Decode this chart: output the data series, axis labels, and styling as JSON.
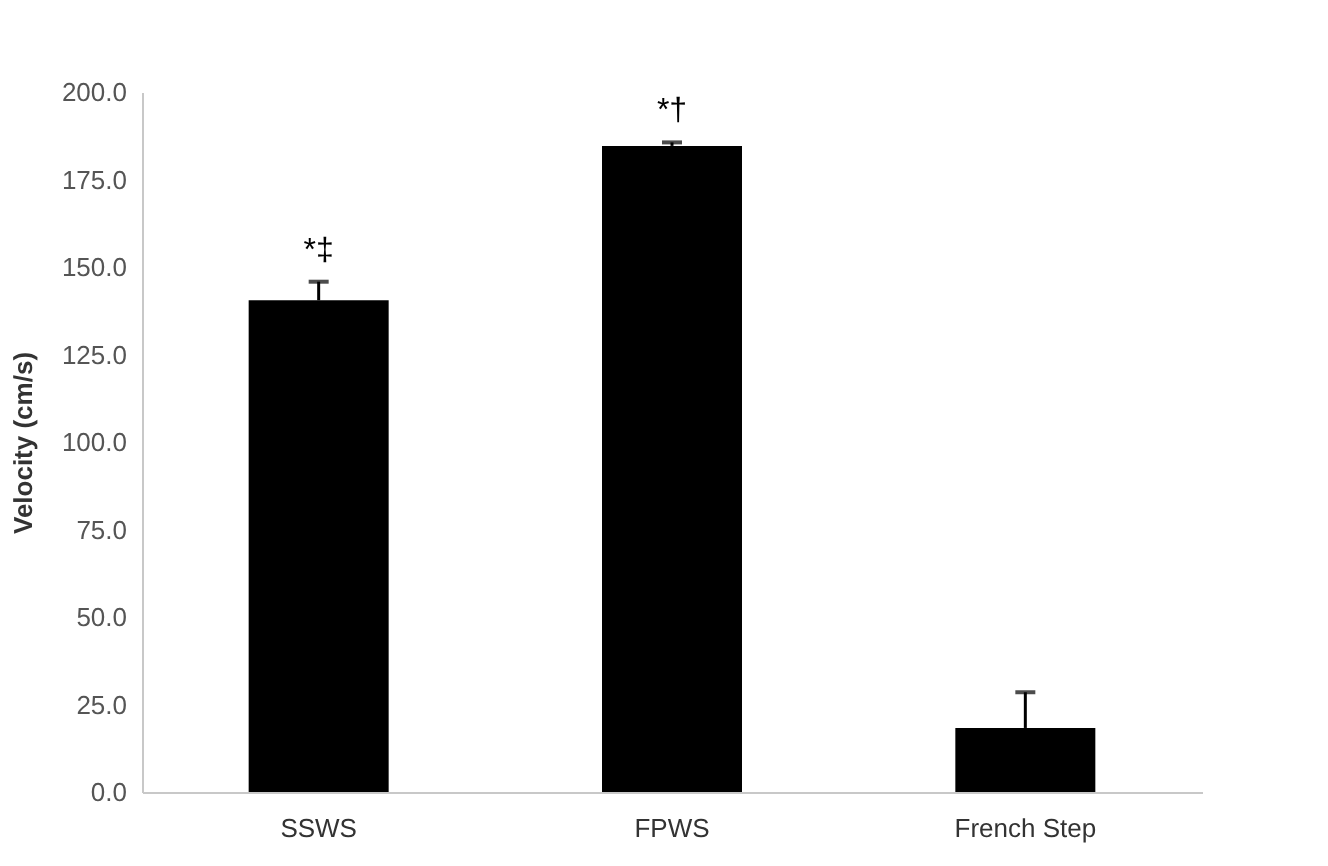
{
  "chart_data": {
    "type": "bar",
    "ylabel": "Velocity (cm/s)",
    "categories": [
      "SSWS",
      "FPWS",
      "French Step"
    ],
    "values": [
      140.5,
      184.6,
      18.3
    ],
    "errors": [
      5.3,
      1.0,
      10.2
    ],
    "color": "#000000",
    "ylim": [
      0,
      200
    ],
    "yticks": [
      {
        "value": 0,
        "label": "0.0"
      },
      {
        "value": 25,
        "label": "25.0"
      },
      {
        "value": 50,
        "label": "50.0"
      },
      {
        "value": 75,
        "label": "75.0"
      },
      {
        "value": 100,
        "label": "100.0"
      },
      {
        "value": 125,
        "label": "125.0"
      },
      {
        "value": 150,
        "label": "150.0"
      },
      {
        "value": 175,
        "label": "175.0"
      },
      {
        "value": 200,
        "label": "200.0"
      }
    ],
    "grid": false,
    "annotations": [
      "*‡",
      "*†"
    ]
  }
}
